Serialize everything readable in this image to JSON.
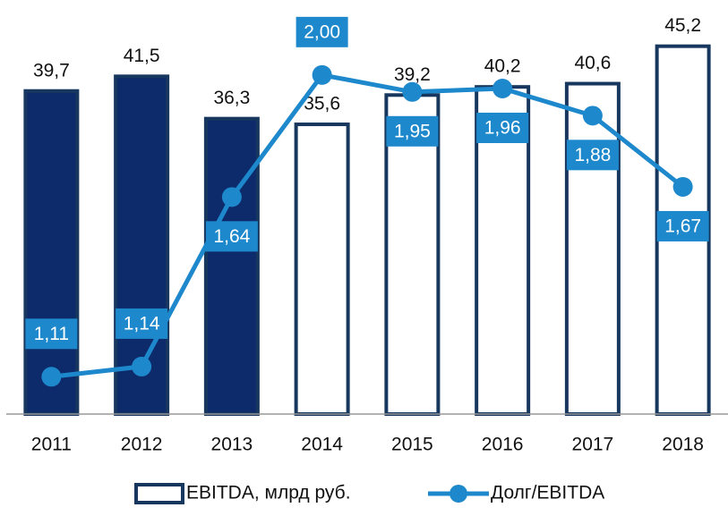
{
  "chart_data": {
    "type": "bar_line",
    "categories": [
      "2011",
      "2012",
      "2013",
      "2014",
      "2015",
      "2016",
      "2017",
      "2018"
    ],
    "series": [
      {
        "name": "EBITDA, млрд руб.",
        "type": "bar",
        "color": "#17375e",
        "colors": [
          "#0d2b6b",
          "#0d2b6b",
          "#0d2b6b",
          "#ffffff",
          "#ffffff",
          "#ffffff",
          "#ffffff",
          "#ffffff"
        ],
        "values": [
          39.7,
          41.5,
          36.3,
          35.6,
          39.2,
          40.2,
          40.6,
          45.2
        ],
        "value_labels": [
          "39,7",
          "41,5",
          "36,3",
          "35,6",
          "39,2",
          "40,2",
          "40,6",
          "45,2"
        ]
      },
      {
        "name": "Долг/EBITDA",
        "type": "line",
        "axis": "y2",
        "color": "#1e88cc",
        "values": [
          1.11,
          1.14,
          1.64,
          2.0,
          1.95,
          1.96,
          1.88,
          1.67
        ],
        "value_labels": [
          "1,11",
          "1,14",
          "1,64",
          "2,00",
          "1,95",
          "1,96",
          "1,88",
          "1,67"
        ]
      }
    ],
    "ylim": [
      0,
      50
    ],
    "y2lim": [
      1.0,
      2.2
    ]
  }
}
